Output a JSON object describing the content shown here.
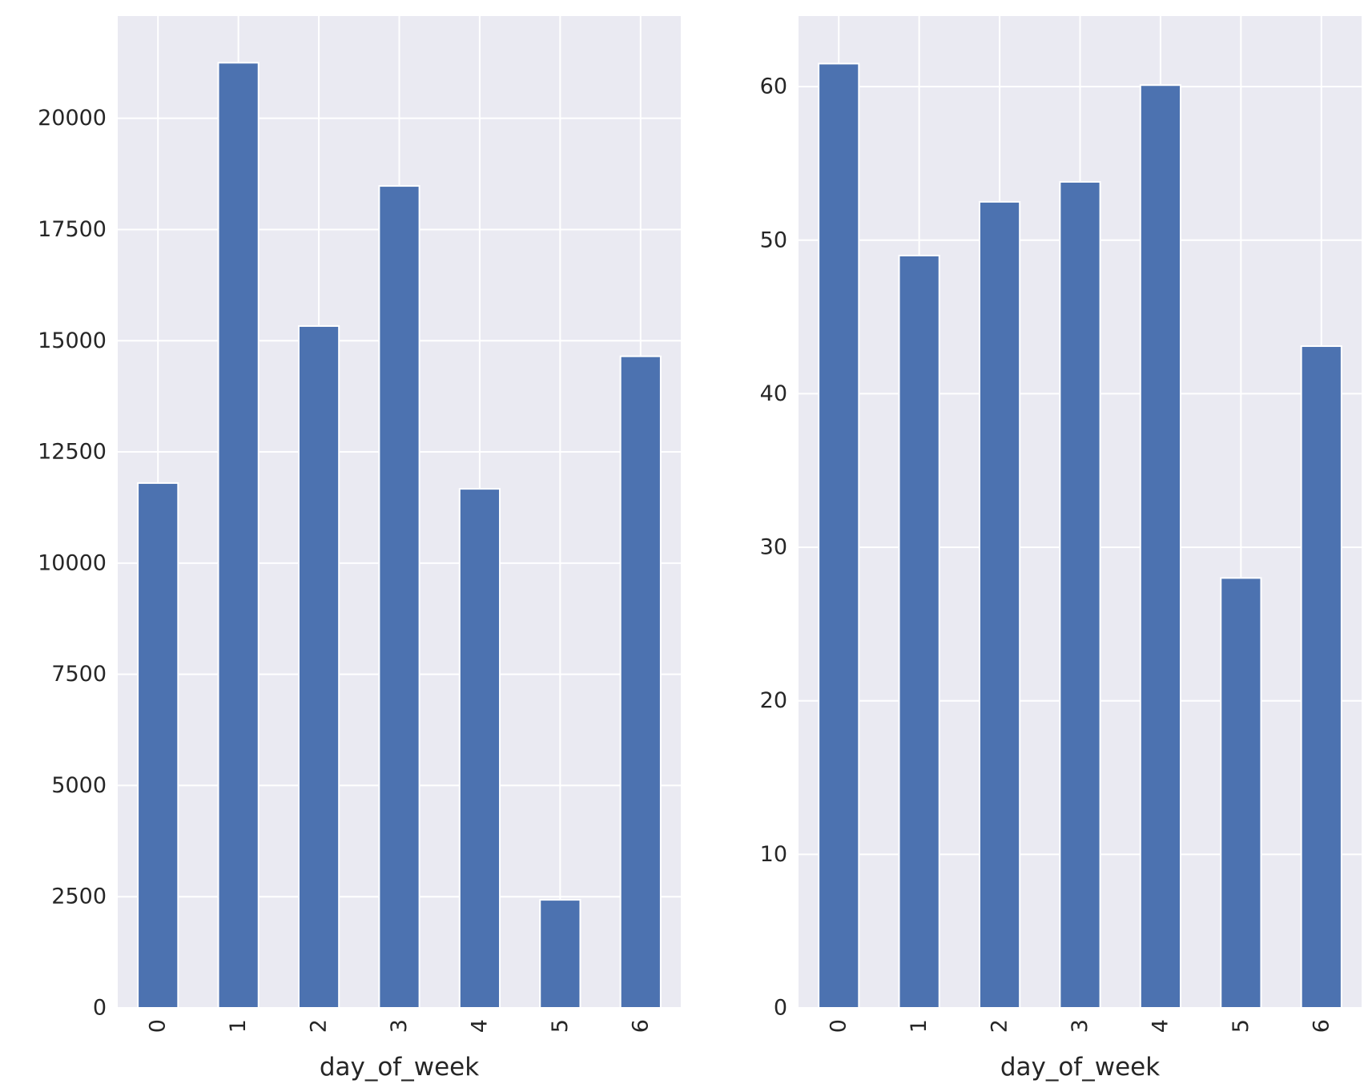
{
  "chart_data": [
    {
      "type": "bar",
      "xlabel": "day_of_week",
      "ylabel": "",
      "categories": [
        "0",
        "1",
        "2",
        "3",
        "4",
        "5",
        "6"
      ],
      "values": [
        11800,
        21250,
        15330,
        18480,
        11670,
        2430,
        14650
      ],
      "ylim": [
        0,
        22300
      ],
      "yticks": [
        0,
        2500,
        5000,
        7500,
        10000,
        12500,
        15000,
        17500,
        20000
      ],
      "ytick_labels": [
        "0",
        "2500",
        "5000",
        "7500",
        "10000",
        "12500",
        "15000",
        "17500",
        "20000"
      ],
      "grid": true,
      "bar_color": "#4c72b0",
      "background_color": "#eaeaf2"
    },
    {
      "type": "bar",
      "xlabel": "day_of_week",
      "ylabel": "",
      "categories": [
        "0",
        "1",
        "2",
        "3",
        "4",
        "5",
        "6"
      ],
      "values": [
        61.5,
        49,
        52.5,
        53.8,
        60.1,
        28,
        43.1
      ],
      "ylim": [
        0,
        64.6
      ],
      "yticks": [
        0,
        10,
        20,
        30,
        40,
        50,
        60
      ],
      "ytick_labels": [
        "0",
        "10",
        "20",
        "30",
        "40",
        "50",
        "60"
      ],
      "grid": true,
      "bar_color": "#4c72b0",
      "background_color": "#eaeaf2"
    }
  ]
}
